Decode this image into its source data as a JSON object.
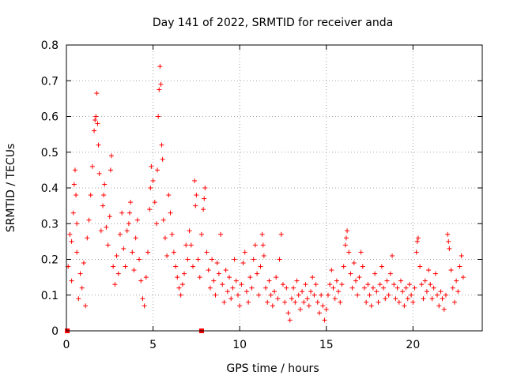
{
  "chart_data": {
    "type": "scatter",
    "title": "Day 141 of 2022, SRMTID for receiver anda",
    "xlabel": "GPS time / hours",
    "ylabel": "SRMTID / TECUs",
    "xlim": [
      0,
      24
    ],
    "ylim": [
      0,
      0.8
    ],
    "x_ticks": [
      0,
      5,
      10,
      15,
      20
    ],
    "x_tick_labels": [
      "0",
      "5",
      "10",
      "15",
      "20"
    ],
    "y_ticks": [
      0,
      0.1,
      0.2,
      0.3,
      0.4,
      0.5,
      0.6,
      0.7,
      0.8
    ],
    "y_tick_labels": [
      "0",
      "0.1",
      "0.2",
      "0.3",
      "0.4",
      "0.5",
      "0.6",
      "0.7",
      "0.8"
    ],
    "grid": true,
    "marker": "+",
    "color": "#ff0000",
    "series": [
      {
        "name": "SRMTID",
        "points": [
          [
            0.1,
            0.18
          ],
          [
            0.2,
            0.27
          ],
          [
            0.3,
            0.14
          ],
          [
            0.4,
            0.33
          ],
          [
            0.5,
            0.45
          ],
          [
            0.55,
            0.38
          ],
          [
            0.6,
            0.22
          ],
          [
            0.7,
            0.09
          ],
          [
            0.8,
            0.16
          ],
          [
            0.9,
            0.12
          ],
          [
            1.0,
            0.19
          ],
          [
            1.1,
            0.07
          ],
          [
            1.2,
            0.26
          ],
          [
            1.3,
            0.31
          ],
          [
            1.4,
            0.38
          ],
          [
            1.5,
            0.46
          ],
          [
            1.6,
            0.56
          ],
          [
            1.7,
            0.6
          ],
          [
            1.75,
            0.665
          ],
          [
            1.8,
            0.58
          ],
          [
            1.9,
            0.44
          ],
          [
            2.0,
            0.28
          ],
          [
            2.1,
            0.35
          ],
          [
            2.2,
            0.41
          ],
          [
            2.3,
            0.29
          ],
          [
            2.4,
            0.24
          ],
          [
            2.5,
            0.32
          ],
          [
            2.6,
            0.49
          ],
          [
            2.7,
            0.18
          ],
          [
            2.8,
            0.13
          ],
          [
            2.9,
            0.21
          ],
          [
            3.0,
            0.16
          ],
          [
            3.1,
            0.27
          ],
          [
            3.2,
            0.33
          ],
          [
            3.3,
            0.23
          ],
          [
            3.4,
            0.18
          ],
          [
            3.5,
            0.28
          ],
          [
            3.6,
            0.3
          ],
          [
            3.7,
            0.36
          ],
          [
            3.8,
            0.22
          ],
          [
            3.9,
            0.17
          ],
          [
            4.0,
            0.26
          ],
          [
            4.1,
            0.31
          ],
          [
            4.2,
            0.2
          ],
          [
            4.3,
            0.14
          ],
          [
            4.4,
            0.09
          ],
          [
            4.5,
            0.07
          ],
          [
            4.6,
            0.15
          ],
          [
            4.7,
            0.22
          ],
          [
            4.8,
            0.34
          ],
          [
            4.9,
            0.46
          ],
          [
            5.0,
            0.42
          ],
          [
            5.1,
            0.36
          ],
          [
            5.2,
            0.3
          ],
          [
            5.3,
            0.6
          ],
          [
            5.35,
            0.675
          ],
          [
            5.4,
            0.74
          ],
          [
            5.45,
            0.69
          ],
          [
            5.5,
            0.52
          ],
          [
            5.6,
            0.31
          ],
          [
            5.7,
            0.26
          ],
          [
            5.8,
            0.21
          ],
          [
            5.9,
            0.38
          ],
          [
            6.0,
            0.33
          ],
          [
            6.1,
            0.27
          ],
          [
            6.2,
            0.22
          ],
          [
            6.3,
            0.18
          ],
          [
            6.4,
            0.15
          ],
          [
            6.5,
            0.12
          ],
          [
            6.6,
            0.1
          ],
          [
            6.7,
            0.13
          ],
          [
            6.8,
            0.16
          ],
          [
            6.9,
            0.24
          ],
          [
            7.0,
            0.2
          ],
          [
            7.1,
            0.28
          ],
          [
            7.2,
            0.24
          ],
          [
            7.3,
            0.18
          ],
          [
            7.4,
            0.42
          ],
          [
            7.5,
            0.38
          ],
          [
            7.6,
            0.2
          ],
          [
            7.7,
            0.15
          ],
          [
            7.8,
            0.27
          ],
          [
            7.9,
            0.34
          ],
          [
            8.0,
            0.4
          ],
          [
            8.1,
            0.22
          ],
          [
            8.2,
            0.17
          ],
          [
            8.3,
            0.12
          ],
          [
            8.4,
            0.2
          ],
          [
            8.5,
            0.14
          ],
          [
            8.6,
            0.1
          ],
          [
            8.7,
            0.19
          ],
          [
            8.8,
            0.16
          ],
          [
            8.9,
            0.27
          ],
          [
            9.0,
            0.13
          ],
          [
            9.1,
            0.08
          ],
          [
            9.2,
            0.17
          ],
          [
            9.3,
            0.11
          ],
          [
            9.4,
            0.15
          ],
          [
            9.5,
            0.09
          ],
          [
            9.6,
            0.12
          ],
          [
            9.7,
            0.2
          ],
          [
            9.8,
            0.14
          ],
          [
            9.9,
            0.1
          ],
          [
            10.0,
            0.07
          ],
          [
            10.1,
            0.13
          ],
          [
            10.2,
            0.19
          ],
          [
            10.3,
            0.22
          ],
          [
            10.4,
            0.11
          ],
          [
            10.5,
            0.08
          ],
          [
            10.6,
            0.15
          ],
          [
            10.7,
            0.12
          ],
          [
            10.8,
            0.2
          ],
          [
            10.9,
            0.24
          ],
          [
            11.0,
            0.16
          ],
          [
            11.1,
            0.1
          ],
          [
            11.2,
            0.18
          ],
          [
            11.3,
            0.27
          ],
          [
            11.4,
            0.21
          ],
          [
            11.5,
            0.12
          ],
          [
            11.6,
            0.08
          ],
          [
            11.7,
            0.14
          ],
          [
            11.8,
            0.1
          ],
          [
            11.9,
            0.07
          ],
          [
            12.0,
            0.11
          ],
          [
            12.1,
            0.15
          ],
          [
            12.2,
            0.09
          ],
          [
            12.3,
            0.2
          ],
          [
            12.4,
            0.27
          ],
          [
            12.5,
            0.13
          ],
          [
            12.6,
            0.08
          ],
          [
            12.7,
            0.12
          ],
          [
            12.8,
            0.05
          ],
          [
            12.9,
            0.03
          ],
          [
            13.0,
            0.09
          ],
          [
            13.1,
            0.12
          ],
          [
            13.2,
            0.08
          ],
          [
            13.3,
            0.14
          ],
          [
            13.4,
            0.1
          ],
          [
            13.5,
            0.06
          ],
          [
            13.6,
            0.11
          ],
          [
            13.7,
            0.08
          ],
          [
            13.8,
            0.13
          ],
          [
            13.9,
            0.09
          ],
          [
            14.0,
            0.07
          ],
          [
            14.1,
            0.11
          ],
          [
            14.2,
            0.15
          ],
          [
            14.3,
            0.1
          ],
          [
            14.4,
            0.13
          ],
          [
            14.5,
            0.08
          ],
          [
            14.6,
            0.05
          ],
          [
            14.7,
            0.1
          ],
          [
            14.8,
            0.07
          ],
          [
            14.9,
            0.03
          ],
          [
            15.0,
            0.06
          ],
          [
            15.1,
            0.1
          ],
          [
            15.2,
            0.13
          ],
          [
            15.3,
            0.17
          ],
          [
            15.4,
            0.12
          ],
          [
            15.5,
            0.09
          ],
          [
            15.6,
            0.14
          ],
          [
            15.7,
            0.11
          ],
          [
            15.8,
            0.08
          ],
          [
            15.9,
            0.13
          ],
          [
            16.0,
            0.18
          ],
          [
            16.1,
            0.24
          ],
          [
            16.2,
            0.28
          ],
          [
            16.3,
            0.22
          ],
          [
            16.4,
            0.16
          ],
          [
            16.5,
            0.12
          ],
          [
            16.6,
            0.19
          ],
          [
            16.7,
            0.14
          ],
          [
            16.8,
            0.1
          ],
          [
            16.9,
            0.15
          ],
          [
            17.0,
            0.22
          ],
          [
            17.1,
            0.18
          ],
          [
            17.2,
            0.12
          ],
          [
            17.3,
            0.08
          ],
          [
            17.4,
            0.13
          ],
          [
            17.5,
            0.1
          ],
          [
            17.6,
            0.07
          ],
          [
            17.7,
            0.12
          ],
          [
            17.8,
            0.16
          ],
          [
            17.9,
            0.11
          ],
          [
            18.0,
            0.08
          ],
          [
            18.1,
            0.13
          ],
          [
            18.2,
            0.18
          ],
          [
            18.3,
            0.12
          ],
          [
            18.4,
            0.09
          ],
          [
            18.5,
            0.14
          ],
          [
            18.6,
            0.1
          ],
          [
            18.7,
            0.16
          ],
          [
            18.8,
            0.21
          ],
          [
            18.9,
            0.13
          ],
          [
            19.0,
            0.09
          ],
          [
            19.1,
            0.12
          ],
          [
            19.2,
            0.08
          ],
          [
            19.3,
            0.14
          ],
          [
            19.4,
            0.11
          ],
          [
            19.5,
            0.07
          ],
          [
            19.6,
            0.12
          ],
          [
            19.7,
            0.09
          ],
          [
            19.8,
            0.13
          ],
          [
            19.9,
            0.1
          ],
          [
            20.0,
            0.08
          ],
          [
            20.1,
            0.12
          ],
          [
            20.2,
            0.22
          ],
          [
            20.3,
            0.26
          ],
          [
            20.4,
            0.18
          ],
          [
            20.5,
            0.13
          ],
          [
            20.6,
            0.09
          ],
          [
            20.7,
            0.14
          ],
          [
            20.8,
            0.11
          ],
          [
            20.9,
            0.17
          ],
          [
            21.0,
            0.13
          ],
          [
            21.1,
            0.09
          ],
          [
            21.2,
            0.12
          ],
          [
            21.3,
            0.16
          ],
          [
            21.4,
            0.1
          ],
          [
            21.5,
            0.07
          ],
          [
            21.6,
            0.11
          ],
          [
            21.7,
            0.09
          ],
          [
            21.8,
            0.06
          ],
          [
            21.9,
            0.1
          ],
          [
            22.0,
            0.27
          ],
          [
            22.1,
            0.23
          ],
          [
            22.2,
            0.17
          ],
          [
            22.3,
            0.12
          ],
          [
            22.4,
            0.08
          ],
          [
            22.5,
            0.14
          ],
          [
            22.6,
            0.11
          ],
          [
            22.7,
            0.18
          ],
          [
            22.8,
            0.21
          ],
          [
            22.9,
            0.15
          ],
          [
            0.3,
            0.25
          ],
          [
            0.45,
            0.41
          ],
          [
            1.65,
            0.59
          ],
          [
            1.85,
            0.52
          ],
          [
            2.55,
            0.45
          ],
          [
            5.25,
            0.45
          ],
          [
            5.55,
            0.48
          ],
          [
            7.45,
            0.35
          ],
          [
            7.95,
            0.37
          ],
          [
            11.35,
            0.24
          ],
          [
            16.15,
            0.26
          ],
          [
            20.25,
            0.25
          ],
          [
            22.05,
            0.25
          ],
          [
            0.6,
            0.3
          ],
          [
            2.15,
            0.38
          ],
          [
            3.65,
            0.33
          ],
          [
            4.85,
            0.4
          ]
        ]
      }
    ],
    "special_markers": [
      [
        0.05,
        0.0
      ],
      [
        7.8,
        0.0
      ]
    ]
  }
}
